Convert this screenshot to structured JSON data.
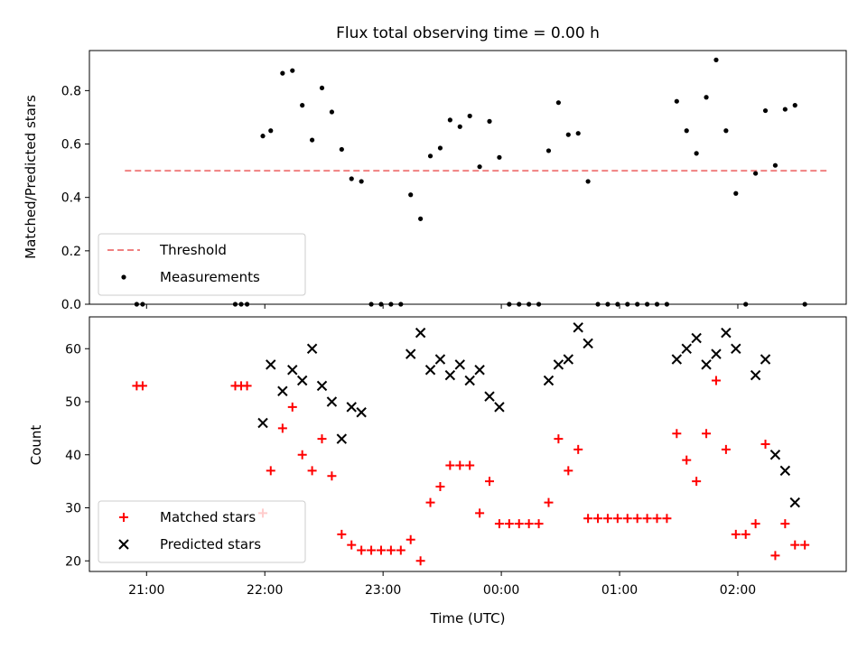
{
  "chart_data": [
    {
      "type": "scatter",
      "title": "Flux total observing time = 0.00 h",
      "xlabel": "",
      "ylabel": "Matched/Predicted stars",
      "ylim": [
        0,
        0.95
      ],
      "xlim": [
        "20:31",
        "02:55"
      ],
      "yticks": [
        0.0,
        0.2,
        0.4,
        0.6,
        0.8
      ],
      "ytick_labels": [
        "0.0",
        "0.2",
        "0.4",
        "0.6",
        "0.8"
      ],
      "grid": false,
      "legend_position": "lower-left",
      "series": [
        {
          "name": "Threshold",
          "kind": "line",
          "style": "dashed",
          "color": "#f08080",
          "points": [
            [
              "20:49",
              0.5
            ],
            [
              "02:45",
              0.5
            ]
          ]
        },
        {
          "name": "Measurements",
          "kind": "scatter",
          "marker": "dot",
          "color": "#000000",
          "points": [
            [
              "20:55",
              0.0
            ],
            [
              "20:58",
              0.0
            ],
            [
              "21:45",
              0.0
            ],
            [
              "21:48",
              0.0
            ],
            [
              "21:51",
              0.0
            ],
            [
              "21:59",
              0.63
            ],
            [
              "22:03",
              0.65
            ],
            [
              "22:09",
              0.865
            ],
            [
              "22:14",
              0.875
            ],
            [
              "22:19",
              0.745
            ],
            [
              "22:24",
              0.615
            ],
            [
              "22:29",
              0.81
            ],
            [
              "22:34",
              0.72
            ],
            [
              "22:39",
              0.58
            ],
            [
              "22:44",
              0.47
            ],
            [
              "22:49",
              0.46
            ],
            [
              "22:54",
              0.0
            ],
            [
              "22:59",
              0.0
            ],
            [
              "23:04",
              0.0
            ],
            [
              "23:09",
              0.0
            ],
            [
              "23:14",
              0.41
            ],
            [
              "23:19",
              0.32
            ],
            [
              "23:24",
              0.555
            ],
            [
              "23:29",
              0.585
            ],
            [
              "23:34",
              0.69
            ],
            [
              "23:39",
              0.665
            ],
            [
              "23:44",
              0.705
            ],
            [
              "23:49",
              0.515
            ],
            [
              "23:54",
              0.685
            ],
            [
              "23:59",
              0.55
            ],
            [
              "00:04",
              0.0
            ],
            [
              "00:09",
              0.0
            ],
            [
              "00:14",
              0.0
            ],
            [
              "00:19",
              0.0
            ],
            [
              "00:24",
              0.575
            ],
            [
              "00:29",
              0.755
            ],
            [
              "00:34",
              0.635
            ],
            [
              "00:39",
              0.64
            ],
            [
              "00:44",
              0.46
            ],
            [
              "00:49",
              0.0
            ],
            [
              "00:54",
              0.0
            ],
            [
              "00:59",
              0.0
            ],
            [
              "01:04",
              0.0
            ],
            [
              "01:09",
              0.0
            ],
            [
              "01:14",
              0.0
            ],
            [
              "01:19",
              0.0
            ],
            [
              "01:24",
              0.0
            ],
            [
              "01:29",
              0.76
            ],
            [
              "01:34",
              0.65
            ],
            [
              "01:39",
              0.565
            ],
            [
              "01:44",
              0.775
            ],
            [
              "01:49",
              0.915
            ],
            [
              "01:54",
              0.65
            ],
            [
              "01:59",
              0.415
            ],
            [
              "02:04",
              0.0
            ],
            [
              "02:09",
              0.49
            ],
            [
              "02:14",
              0.725
            ],
            [
              "02:19",
              0.52
            ],
            [
              "02:24",
              0.73
            ],
            [
              "02:29",
              0.745
            ],
            [
              "02:34",
              0.0
            ]
          ]
        }
      ]
    },
    {
      "type": "scatter",
      "title": "",
      "xlabel": "Time (UTC)",
      "ylabel": "Count",
      "ylim": [
        18,
        66
      ],
      "xlim": [
        "20:31",
        "02:55"
      ],
      "yticks": [
        20,
        30,
        40,
        50,
        60
      ],
      "ytick_labels": [
        "20",
        "30",
        "40",
        "50",
        "60"
      ],
      "xticks": [
        "21:00",
        "22:00",
        "23:00",
        "00:00",
        "01:00",
        "02:00"
      ],
      "xtick_labels": [
        "21:00",
        "22:00",
        "23:00",
        "00:00",
        "01:00",
        "02:00"
      ],
      "grid": false,
      "legend_position": "lower-left",
      "series": [
        {
          "name": "Matched stars",
          "kind": "scatter",
          "marker": "plus",
          "color": "#ff0000",
          "points": [
            [
              "20:55",
              53
            ],
            [
              "20:58",
              53
            ],
            [
              "21:45",
              53
            ],
            [
              "21:48",
              53
            ],
            [
              "21:51",
              53
            ],
            [
              "21:59",
              29
            ],
            [
              "22:03",
              37
            ],
            [
              "22:09",
              45
            ],
            [
              "22:14",
              49
            ],
            [
              "22:19",
              40
            ],
            [
              "22:24",
              37
            ],
            [
              "22:29",
              43
            ],
            [
              "22:34",
              36
            ],
            [
              "22:39",
              25
            ],
            [
              "22:44",
              23
            ],
            [
              "22:49",
              22
            ],
            [
              "22:54",
              22
            ],
            [
              "22:59",
              22
            ],
            [
              "23:04",
              22
            ],
            [
              "23:09",
              22
            ],
            [
              "23:14",
              24
            ],
            [
              "23:19",
              20
            ],
            [
              "23:24",
              31
            ],
            [
              "23:29",
              34
            ],
            [
              "23:34",
              38
            ],
            [
              "23:39",
              38
            ],
            [
              "23:44",
              38
            ],
            [
              "23:49",
              29
            ],
            [
              "23:54",
              35
            ],
            [
              "23:59",
              27
            ],
            [
              "00:04",
              27
            ],
            [
              "00:09",
              27
            ],
            [
              "00:14",
              27
            ],
            [
              "00:19",
              27
            ],
            [
              "00:24",
              31
            ],
            [
              "00:29",
              43
            ],
            [
              "00:34",
              37
            ],
            [
              "00:39",
              41
            ],
            [
              "00:44",
              28
            ],
            [
              "00:49",
              28
            ],
            [
              "00:54",
              28
            ],
            [
              "00:59",
              28
            ],
            [
              "01:04",
              28
            ],
            [
              "01:09",
              28
            ],
            [
              "01:14",
              28
            ],
            [
              "01:19",
              28
            ],
            [
              "01:24",
              28
            ],
            [
              "01:29",
              44
            ],
            [
              "01:34",
              39
            ],
            [
              "01:39",
              35
            ],
            [
              "01:44",
              44
            ],
            [
              "01:49",
              54
            ],
            [
              "01:54",
              41
            ],
            [
              "01:59",
              25
            ],
            [
              "02:04",
              25
            ],
            [
              "02:09",
              27
            ],
            [
              "02:14",
              42
            ],
            [
              "02:19",
              21
            ],
            [
              "02:24",
              27
            ],
            [
              "02:29",
              23
            ],
            [
              "02:34",
              23
            ]
          ]
        },
        {
          "name": "Predicted stars",
          "kind": "scatter",
          "marker": "x",
          "color": "#000000",
          "points": [
            [
              "21:59",
              46
            ],
            [
              "22:03",
              57
            ],
            [
              "22:09",
              52
            ],
            [
              "22:14",
              56
            ],
            [
              "22:19",
              54
            ],
            [
              "22:24",
              60
            ],
            [
              "22:29",
              53
            ],
            [
              "22:34",
              50
            ],
            [
              "22:39",
              43
            ],
            [
              "22:44",
              49
            ],
            [
              "22:49",
              48
            ],
            [
              "23:14",
              59
            ],
            [
              "23:19",
              63
            ],
            [
              "23:24",
              56
            ],
            [
              "23:29",
              58
            ],
            [
              "23:34",
              55
            ],
            [
              "23:39",
              57
            ],
            [
              "23:44",
              54
            ],
            [
              "23:49",
              56
            ],
            [
              "23:54",
              51
            ],
            [
              "23:59",
              49
            ],
            [
              "00:24",
              54
            ],
            [
              "00:29",
              57
            ],
            [
              "00:34",
              58
            ],
            [
              "00:39",
              64
            ],
            [
              "00:44",
              61
            ],
            [
              "01:29",
              58
            ],
            [
              "01:34",
              60
            ],
            [
              "01:39",
              62
            ],
            [
              "01:44",
              57
            ],
            [
              "01:49",
              59
            ],
            [
              "01:54",
              63
            ],
            [
              "01:59",
              60
            ],
            [
              "02:09",
              55
            ],
            [
              "02:14",
              58
            ],
            [
              "02:19",
              40
            ],
            [
              "02:24",
              37
            ],
            [
              "02:29",
              31
            ]
          ]
        }
      ]
    }
  ]
}
